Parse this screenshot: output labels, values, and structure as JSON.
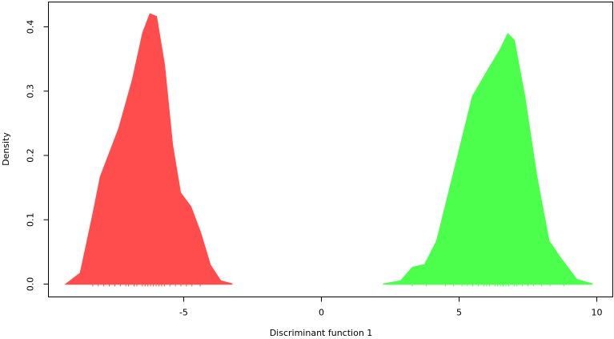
{
  "chart_data": {
    "type": "area",
    "x_label": "Discriminant function 1",
    "y_label": "Density",
    "xlim": [
      -9.91,
      10.58
    ],
    "ylim": [
      -0.02,
      0.4386
    ],
    "xticks": [
      -5,
      0,
      5,
      10
    ],
    "yticks": [
      {
        "value": 0,
        "label": "0.0"
      },
      0.1,
      0.2,
      0.3,
      0.4
    ],
    "grid": false,
    "series": [
      {
        "color": "#ff4c4c",
        "x": [
          -9.27,
          -8.75,
          -8.31,
          -8.02,
          -7.35,
          -6.86,
          -6.48,
          -6.22,
          -5.99,
          -5.7,
          -5.41,
          -5.12,
          -4.74,
          -4.39,
          -4.04,
          -3.66,
          -3.23
        ],
        "values": [
          0,
          0.017,
          0.105,
          0.167,
          0.242,
          0.317,
          0.391,
          0.42,
          0.416,
          0.341,
          0.217,
          0.142,
          0.12,
          0.08,
          0.03,
          0.005,
          0
        ],
        "rug": [
          -8.3,
          -8.1,
          -7.9,
          -7.7,
          -7.5,
          -7.3,
          -7.1,
          -7.0,
          -6.8,
          -6.7,
          -6.5,
          -6.4,
          -6.3,
          -6.2,
          -6.1,
          -6.0,
          -5.9,
          -5.8,
          -5.7,
          -5.5,
          -5.3,
          -5.1,
          -4.9,
          -4.7,
          -4.4
        ]
      },
      {
        "color": "#4cff4c",
        "x": [
          2.24,
          2.88,
          3.31,
          3.75,
          4.19,
          4.77,
          5.49,
          6.08,
          6.51,
          6.77,
          7.0,
          7.38,
          7.82,
          8.26,
          8.69,
          9.27,
          9.85
        ],
        "values": [
          0,
          0.005,
          0.026,
          0.03,
          0.067,
          0.167,
          0.292,
          0.335,
          0.366,
          0.389,
          0.379,
          0.292,
          0.167,
          0.067,
          0.04,
          0.007,
          0
        ],
        "rug": [
          3.3,
          3.8,
          4.5,
          4.8,
          5.1,
          5.3,
          5.5,
          5.7,
          5.9,
          6.0,
          6.1,
          6.3,
          6.4,
          6.5,
          6.6,
          6.7,
          6.8,
          7.0,
          7.1,
          7.3,
          7.5,
          7.7,
          8.0,
          8.3,
          8.8
        ]
      }
    ]
  }
}
